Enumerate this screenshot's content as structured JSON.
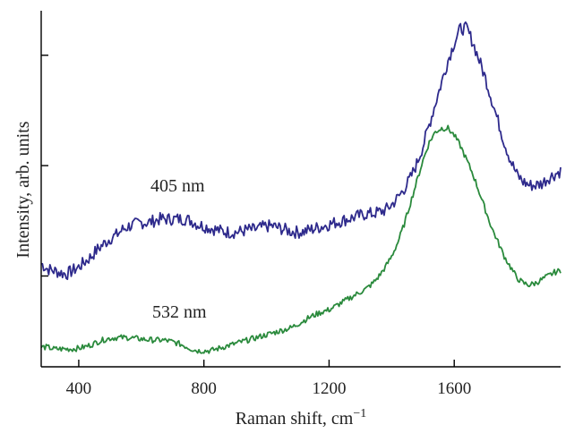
{
  "chart_data": {
    "type": "line",
    "title": "",
    "xlabel": "Raman shift, cm",
    "xlabel_superscript": "−1",
    "ylabel": "Intensity, arb. units",
    "xlim": [
      280,
      1940
    ],
    "ylim": [
      0,
      1.0
    ],
    "x_ticks": [
      400,
      800,
      1200,
      1600
    ],
    "x_tick_labels": [
      "400",
      "800",
      "1200",
      "1600"
    ],
    "y_ticks_unlabeled": [
      0.255,
      0.565,
      0.875
    ],
    "grid": false,
    "colors": {
      "405 nm": "#2e2a8c",
      "532 nm": "#2a8a3c"
    },
    "annotations": [
      {
        "text": "405 nm",
        "series": "405 nm"
      },
      {
        "text": "532 nm",
        "series": "532 nm"
      }
    ],
    "series": [
      {
        "name": "405 nm",
        "x": [
          280,
          300,
          320,
          340,
          360,
          380,
          400,
          420,
          440,
          460,
          480,
          500,
          520,
          540,
          560,
          580,
          600,
          620,
          640,
          660,
          680,
          700,
          720,
          740,
          760,
          780,
          800,
          820,
          840,
          860,
          880,
          900,
          920,
          940,
          960,
          980,
          1000,
          1020,
          1040,
          1060,
          1080,
          1100,
          1120,
          1140,
          1160,
          1180,
          1200,
          1220,
          1240,
          1260,
          1280,
          1300,
          1320,
          1340,
          1360,
          1380,
          1400,
          1420,
          1440,
          1460,
          1480,
          1500,
          1520,
          1540,
          1560,
          1580,
          1600,
          1620,
          1640,
          1660,
          1680,
          1700,
          1720,
          1740,
          1760,
          1780,
          1800,
          1820,
          1840,
          1860,
          1880,
          1900,
          1920,
          1940
        ],
        "y": [
          0.29,
          0.275,
          0.27,
          0.265,
          0.26,
          0.27,
          0.28,
          0.295,
          0.31,
          0.33,
          0.345,
          0.36,
          0.37,
          0.385,
          0.395,
          0.4,
          0.405,
          0.405,
          0.41,
          0.415,
          0.415,
          0.415,
          0.415,
          0.415,
          0.41,
          0.4,
          0.395,
          0.39,
          0.385,
          0.38,
          0.378,
          0.378,
          0.38,
          0.385,
          0.385,
          0.39,
          0.395,
          0.395,
          0.39,
          0.385,
          0.38,
          0.378,
          0.38,
          0.385,
          0.39,
          0.395,
          0.4,
          0.405,
          0.41,
          0.415,
          0.42,
          0.425,
          0.43,
          0.43,
          0.435,
          0.44,
          0.455,
          0.475,
          0.5,
          0.53,
          0.57,
          0.62,
          0.68,
          0.74,
          0.8,
          0.86,
          0.91,
          0.95,
          0.95,
          0.91,
          0.86,
          0.81,
          0.75,
          0.69,
          0.63,
          0.58,
          0.54,
          0.52,
          0.51,
          0.51,
          0.515,
          0.53,
          0.54,
          0.55
        ]
      },
      {
        "name": "532 nm",
        "x": [
          280,
          300,
          320,
          340,
          360,
          380,
          400,
          420,
          440,
          460,
          480,
          500,
          520,
          540,
          560,
          580,
          600,
          620,
          640,
          660,
          680,
          700,
          720,
          740,
          760,
          780,
          800,
          820,
          840,
          860,
          880,
          900,
          920,
          940,
          960,
          980,
          1000,
          1020,
          1040,
          1060,
          1080,
          1100,
          1120,
          1140,
          1160,
          1180,
          1200,
          1220,
          1240,
          1260,
          1280,
          1300,
          1320,
          1340,
          1360,
          1380,
          1400,
          1420,
          1440,
          1460,
          1480,
          1500,
          1520,
          1540,
          1560,
          1580,
          1600,
          1620,
          1640,
          1660,
          1680,
          1700,
          1720,
          1740,
          1760,
          1780,
          1800,
          1820,
          1840,
          1860,
          1880,
          1900,
          1920,
          1940
        ],
        "y": [
          0.055,
          0.055,
          0.05,
          0.05,
          0.05,
          0.05,
          0.052,
          0.056,
          0.062,
          0.07,
          0.076,
          0.08,
          0.082,
          0.082,
          0.082,
          0.08,
          0.078,
          0.076,
          0.075,
          0.075,
          0.074,
          0.07,
          0.065,
          0.058,
          0.05,
          0.045,
          0.045,
          0.045,
          0.05,
          0.055,
          0.06,
          0.065,
          0.07,
          0.075,
          0.08,
          0.085,
          0.09,
          0.095,
          0.1,
          0.105,
          0.11,
          0.12,
          0.13,
          0.14,
          0.148,
          0.155,
          0.16,
          0.17,
          0.18,
          0.19,
          0.2,
          0.21,
          0.22,
          0.235,
          0.255,
          0.28,
          0.31,
          0.35,
          0.4,
          0.46,
          0.52,
          0.58,
          0.63,
          0.66,
          0.67,
          0.67,
          0.65,
          0.62,
          0.58,
          0.54,
          0.49,
          0.44,
          0.39,
          0.35,
          0.31,
          0.28,
          0.25,
          0.235,
          0.23,
          0.235,
          0.245,
          0.255,
          0.265,
          0.27
        ]
      }
    ]
  }
}
